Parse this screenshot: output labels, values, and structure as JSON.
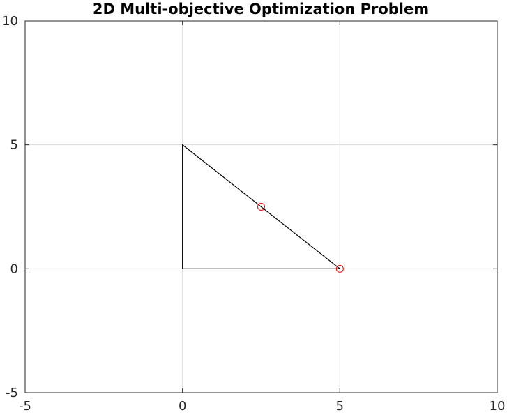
{
  "chart_data": {
    "type": "line",
    "title": "2D Multi-objective Optimization Problem",
    "xlabel": "",
    "ylabel": "",
    "xlim": [
      -5,
      10
    ],
    "ylim": [
      -5,
      10
    ],
    "xticks": [
      -5,
      0,
      5,
      10
    ],
    "yticks": [
      -5,
      0,
      5,
      10
    ],
    "x_tick_labels": [
      "-5",
      "0",
      "5",
      "10"
    ],
    "y_tick_labels": [
      "-5",
      "0",
      "5",
      "10"
    ],
    "grid": true,
    "series": [
      {
        "name": "feasible-region-boundary",
        "style": "line",
        "color": "#000000",
        "x": [
          0,
          5,
          0,
          0
        ],
        "y": [
          0,
          0,
          5,
          0
        ]
      },
      {
        "name": "pareto-points",
        "style": "marker",
        "marker": "circle",
        "color": "#ff0000",
        "x": [
          2.5,
          5
        ],
        "y": [
          2.5,
          0
        ]
      }
    ]
  },
  "colors": {
    "grid": "#d9d9d9",
    "axis": "#262626",
    "background": "#ffffff"
  }
}
